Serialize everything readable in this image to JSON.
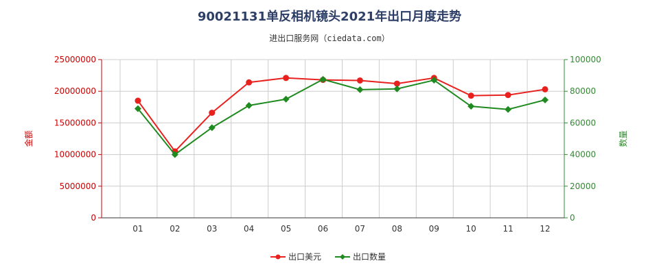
{
  "title": "90021131单反相机镜头2021年出口月度走势",
  "subtitle": "进出口服务网（ciedata.com）",
  "chart_data": {
    "type": "line",
    "categories": [
      "01",
      "02",
      "03",
      "04",
      "05",
      "06",
      "07",
      "08",
      "09",
      "10",
      "11",
      "12"
    ],
    "ylabel_left": "金额",
    "ylabel_right": "数量",
    "ylim_left": [
      0,
      25000000
    ],
    "ylim_right": [
      0,
      100000
    ],
    "yticks_left": [
      "0",
      "5000000",
      "10000000",
      "15000000",
      "20000000",
      "25000000"
    ],
    "yticks_right": [
      "0",
      "20000",
      "40000",
      "60000",
      "80000",
      "100000"
    ],
    "grid": true,
    "legend_position": "bottom",
    "series": [
      {
        "name": "出口美元",
        "axis": "left",
        "color": "#e8201e",
        "marker": "circle",
        "values": [
          18500000,
          10500000,
          16600000,
          21400000,
          22100000,
          21800000,
          21700000,
          21200000,
          22100000,
          19300000,
          19400000,
          20300000
        ]
      },
      {
        "name": "出口数量",
        "axis": "right",
        "color": "#1f8a1f",
        "marker": "diamond",
        "values": [
          69000,
          40000,
          57000,
          71000,
          75000,
          87500,
          81000,
          81500,
          87000,
          70500,
          68500,
          74500
        ]
      }
    ]
  },
  "colors": {
    "left_axis": "#cc0000",
    "right_axis": "#338833",
    "grid": "#cccccc"
  }
}
